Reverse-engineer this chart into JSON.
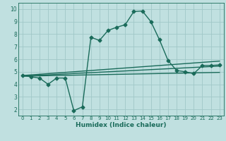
{
  "title": "",
  "xlabel": "Humidex (Indice chaleur)",
  "ylabel": "",
  "bg_color": "#c0e0e0",
  "grid_color": "#a0c8c8",
  "line_color": "#1a6b5a",
  "marker": "D",
  "markersize": 2.5,
  "linewidth": 1.0,
  "xlim": [
    -0.5,
    23.5
  ],
  "ylim": [
    1.5,
    10.5
  ],
  "xticks": [
    0,
    1,
    2,
    3,
    4,
    5,
    6,
    7,
    8,
    9,
    10,
    11,
    12,
    13,
    14,
    15,
    16,
    17,
    18,
    19,
    20,
    21,
    22,
    23
  ],
  "yticks": [
    2,
    3,
    4,
    5,
    6,
    7,
    8,
    9,
    10
  ],
  "curve1_x": [
    0,
    1,
    2,
    3,
    4,
    5,
    6,
    7,
    8,
    9,
    10,
    11,
    12,
    13,
    14,
    15,
    16,
    17,
    18,
    19,
    20,
    21,
    22,
    23
  ],
  "curve1_y": [
    4.7,
    4.6,
    4.5,
    4.0,
    4.5,
    4.5,
    1.9,
    2.2,
    7.75,
    7.5,
    8.3,
    8.55,
    8.75,
    9.8,
    9.85,
    9.0,
    7.55,
    5.9,
    5.1,
    5.0,
    4.85,
    5.5,
    5.5,
    5.55
  ],
  "curve2_x": [
    0,
    23
  ],
  "curve2_y": [
    4.7,
    5.85
  ],
  "curve3_x": [
    0,
    23
  ],
  "curve3_y": [
    4.65,
    5.45
  ],
  "curve4_x": [
    0,
    23
  ],
  "curve4_y": [
    4.65,
    4.95
  ]
}
